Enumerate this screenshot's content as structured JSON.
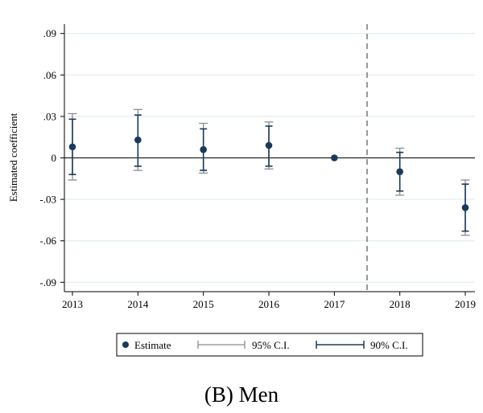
{
  "caption": "(B) Men",
  "chart_data": {
    "type": "scatter",
    "title": "",
    "xlabel": "",
    "ylabel": "Estimated coefficient",
    "x": [
      2013,
      2014,
      2015,
      2016,
      2017,
      2018,
      2019
    ],
    "x_tick_labels": [
      "2013",
      "2014",
      "2015",
      "2016",
      "2017",
      "2018",
      "2019"
    ],
    "xlim": [
      2013,
      2019
    ],
    "ylim": [
      -0.1,
      0.1
    ],
    "y_ticks": [
      0.09,
      0.06,
      0.03,
      0,
      -0.03,
      -0.06,
      -0.09
    ],
    "y_tick_labels": [
      ".09",
      ".06",
      ".03",
      "0",
      "-.03",
      "-.06",
      "-.09"
    ],
    "grid": true,
    "reference_line_y": 0,
    "event_line_x": 2017.5,
    "series": [
      {
        "name": "Estimate",
        "values": [
          0.008,
          0.013,
          0.006,
          0.009,
          0.0,
          -0.01,
          -0.036
        ]
      },
      {
        "name": "95% C.I.",
        "lower": [
          -0.016,
          -0.009,
          -0.011,
          -0.008,
          0.0,
          -0.027,
          -0.056
        ],
        "upper": [
          0.032,
          0.035,
          0.025,
          0.026,
          0.0,
          0.007,
          -0.016
        ]
      },
      {
        "name": "90% C.I.",
        "lower": [
          -0.012,
          -0.006,
          -0.009,
          -0.006,
          0.0,
          -0.024,
          -0.053
        ],
        "upper": [
          0.028,
          0.031,
          0.021,
          0.023,
          0.0,
          0.004,
          -0.019
        ]
      }
    ],
    "legend": [
      "Estimate",
      "95% C.I.",
      "90% C.I."
    ],
    "legend_position": "bottom",
    "colors": {
      "estimate": "#1a3a5c",
      "ci95": "#8c8c8c",
      "ci90": "#1a3a5c",
      "grid": "#dceaf0",
      "event_line": "#555555"
    }
  }
}
